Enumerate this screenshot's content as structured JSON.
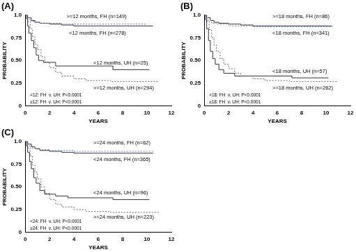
{
  "chart_data": [
    {
      "type": "line",
      "title": "(A)",
      "x_label": "YEARS",
      "y_label": "PROBABILITY",
      "xlim": [
        0,
        12
      ],
      "xticks": [
        0,
        2,
        4,
        6,
        8,
        10,
        12
      ],
      "ylim": [
        0,
        1
      ],
      "yticks": [
        0,
        0.25,
        {
          "value": 0.5,
          "label": "0.50"
        },
        0.75,
        {
          "value": 1,
          "label": "1.0"
        }
      ],
      "grid": false,
      "series": [
        {
          "name": ">=12 months, FH (n=149)",
          "color": "#6f82c4",
          "line_style": "dotted",
          "x": [
            0,
            0.1,
            0.3,
            0.5,
            0.8,
            1.2,
            2,
            3,
            5,
            10
          ],
          "values": [
            1,
            0.97,
            0.95,
            0.93,
            0.92,
            0.91,
            0.91,
            0.9,
            0.9,
            0.9
          ]
        },
        {
          "name": "<12 months, FH (n=278)",
          "color": "#333333",
          "line_style": "solid",
          "x": [
            0,
            0.2,
            0.5,
            0.8,
            1.2,
            2,
            3,
            4,
            10.5
          ],
          "values": [
            1,
            0.97,
            0.94,
            0.92,
            0.91,
            0.9,
            0.89,
            0.88,
            0.88
          ]
        },
        {
          "name": "<12 months, UH (n=25)",
          "color": "#333333",
          "line_style": "solid",
          "x": [
            0,
            0.1,
            0.2,
            0.3,
            0.5,
            0.7,
            0.9,
            1.1,
            1.5,
            2.5,
            7.2,
            10.2
          ],
          "values": [
            1,
            0.96,
            0.88,
            0.8,
            0.72,
            0.64,
            0.56,
            0.5,
            0.48,
            0.44,
            0.4,
            0.4
          ]
        },
        {
          "name": ">=12 months, UH (n=294)",
          "color": "#666666",
          "line_style": "dotted",
          "x": [
            0,
            0.2,
            0.4,
            0.6,
            0.8,
            1,
            1.3,
            1.6,
            2,
            2.5,
            3,
            4,
            5,
            7,
            11
          ],
          "values": [
            1,
            0.93,
            0.85,
            0.76,
            0.68,
            0.62,
            0.54,
            0.48,
            0.42,
            0.37,
            0.33,
            0.3,
            0.28,
            0.27,
            0.27
          ]
        }
      ],
      "annotations": [
        "<12: FH  v. UH: P<0.0001",
        "≥12: FH  v. UH: P<0.0001"
      ]
    },
    {
      "type": "line",
      "title": "(B)",
      "x_label": "YEARS",
      "y_label": "PROBABILITY",
      "xlim": [
        0,
        12
      ],
      "xticks": [
        0,
        2,
        4,
        6,
        8,
        10,
        12
      ],
      "ylim": [
        0,
        1
      ],
      "yticks": [
        0,
        0.25,
        {
          "value": 0.5,
          "label": "0.50"
        },
        0.75,
        {
          "value": 1,
          "label": "1.0"
        }
      ],
      "grid": false,
      "series": [
        {
          "name": ">=18 months, FH (n=86)",
          "color": "#6f82c4",
          "line_style": "dotted",
          "x": [
            0,
            0.1,
            0.3,
            0.6,
            1,
            2,
            4,
            10.5
          ],
          "values": [
            1,
            0.97,
            0.94,
            0.91,
            0.9,
            0.88,
            0.87,
            0.87
          ]
        },
        {
          "name": "<18 months, FH (n=341)",
          "color": "#333333",
          "line_style": "solid",
          "x": [
            0,
            0.2,
            0.5,
            0.8,
            1.2,
            2,
            3,
            4,
            10.5
          ],
          "values": [
            1,
            0.97,
            0.94,
            0.92,
            0.91,
            0.9,
            0.89,
            0.88,
            0.88
          ]
        },
        {
          "name": "<18 months, UH (n=57)",
          "color": "#333333",
          "line_style": "solid",
          "x": [
            0,
            0.1,
            0.2,
            0.35,
            0.5,
            0.7,
            0.9,
            1.2,
            1.6,
            2.5,
            7.2,
            10.2
          ],
          "values": [
            1,
            0.95,
            0.85,
            0.72,
            0.6,
            0.52,
            0.46,
            0.4,
            0.36,
            0.33,
            0.31,
            0.31
          ]
        },
        {
          "name": ">=18 months, UH (n=262)",
          "color": "#666666",
          "line_style": "dotted",
          "x": [
            0,
            0.2,
            0.4,
            0.6,
            0.8,
            1,
            1.3,
            1.6,
            2,
            2.5,
            3,
            4,
            5,
            7,
            11
          ],
          "values": [
            1,
            0.93,
            0.84,
            0.75,
            0.67,
            0.6,
            0.52,
            0.46,
            0.41,
            0.36,
            0.33,
            0.3,
            0.28,
            0.27,
            0.27
          ]
        }
      ],
      "annotations": [
        "<18: FH  v. UH: P<0.0001",
        "≥18: FH  v. UH: P<0.0001"
      ]
    },
    {
      "type": "line",
      "title": "(C)",
      "x_label": "YEARS",
      "y_label": "PROBABILITY",
      "xlim": [
        0,
        12
      ],
      "xticks": [
        0,
        2,
        4,
        6,
        8,
        10,
        12
      ],
      "ylim": [
        0,
        1
      ],
      "yticks": [
        0,
        0.25,
        {
          "value": 0.5,
          "label": "0.50"
        },
        0.75,
        {
          "value": 1,
          "label": "1.0"
        }
      ],
      "grid": false,
      "series": [
        {
          "name": ">=24 months, FH (n=62)",
          "color": "#6f82c4",
          "line_style": "dotted",
          "x": [
            0,
            0.1,
            0.3,
            0.6,
            1,
            2,
            4,
            10.5
          ],
          "values": [
            1,
            0.98,
            0.95,
            0.92,
            0.91,
            0.9,
            0.89,
            0.89
          ]
        },
        {
          "name": "<24 months, FH (n=365)",
          "color": "#333333",
          "line_style": "solid",
          "x": [
            0,
            0.2,
            0.5,
            0.8,
            1.2,
            2,
            3,
            4,
            10.5
          ],
          "values": [
            1,
            0.97,
            0.94,
            0.92,
            0.9,
            0.89,
            0.88,
            0.87,
            0.87
          ]
        },
        {
          "name": "<24 months, UH (n=96)",
          "color": "#333333",
          "line_style": "solid",
          "x": [
            0,
            0.1,
            0.2,
            0.35,
            0.5,
            0.7,
            0.9,
            1.2,
            1.6,
            2.5,
            3.5,
            7.2,
            10.2
          ],
          "values": [
            1,
            0.95,
            0.88,
            0.78,
            0.7,
            0.6,
            0.54,
            0.46,
            0.42,
            0.4,
            0.38,
            0.36,
            0.36
          ]
        },
        {
          "name": ">=24 months, UH (n=223)",
          "color": "#666666",
          "line_style": "dotted",
          "x": [
            0,
            0.2,
            0.4,
            0.6,
            0.8,
            1,
            1.3,
            1.6,
            2,
            2.5,
            3,
            4,
            5,
            7,
            11
          ],
          "values": [
            1,
            0.93,
            0.84,
            0.74,
            0.66,
            0.59,
            0.5,
            0.43,
            0.36,
            0.31,
            0.28,
            0.25,
            0.23,
            0.22,
            0.22
          ]
        }
      ],
      "annotations": [
        "<24: FH  v. UH: P<0.0001",
        "≥24: FH  v. UH: P<0.0001"
      ]
    }
  ]
}
